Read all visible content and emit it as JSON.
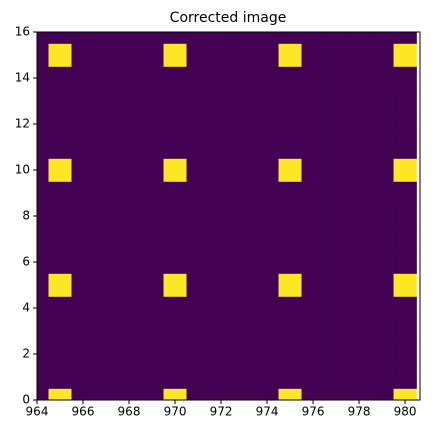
{
  "chart_data": {
    "type": "heatmap",
    "title": "Corrected image",
    "x": [
      964,
      965,
      966,
      967,
      968,
      969,
      970,
      971,
      972,
      973,
      974,
      975,
      976,
      977,
      978,
      979,
      980
    ],
    "y": [
      0,
      1,
      2,
      3,
      4,
      5,
      6,
      7,
      8,
      9,
      10,
      11,
      12,
      13,
      14,
      15,
      16
    ],
    "values": [
      [
        0,
        1,
        0,
        0,
        0,
        0,
        1,
        0,
        0,
        0,
        0,
        1,
        0,
        0,
        0,
        0,
        1
      ],
      [
        0,
        0,
        0,
        0,
        0,
        0,
        0,
        0,
        0,
        0,
        0,
        0,
        0,
        0,
        0,
        0,
        0
      ],
      [
        0,
        0,
        0,
        0,
        0,
        0,
        0,
        0,
        0,
        0,
        0,
        0,
        0,
        0,
        0,
        0,
        0
      ],
      [
        0,
        0,
        0,
        0,
        0,
        0,
        0,
        0,
        0,
        0,
        0,
        0,
        0,
        0,
        0,
        0,
        0
      ],
      [
        0,
        0,
        0,
        0,
        0,
        0,
        0,
        0,
        0,
        0,
        0,
        0,
        0,
        0,
        0,
        0,
        0
      ],
      [
        0,
        1,
        0,
        0,
        0,
        0,
        1,
        0,
        0,
        0,
        0,
        1,
        0,
        0,
        0,
        0,
        1
      ],
      [
        0,
        0,
        0,
        0,
        0,
        0,
        0,
        0,
        0,
        0,
        0,
        0,
        0,
        0,
        0,
        0,
        0
      ],
      [
        0,
        0,
        0,
        0,
        0,
        0,
        0,
        0,
        0,
        0,
        0,
        0,
        0,
        0,
        0,
        0,
        0
      ],
      [
        0,
        0,
        0,
        0,
        0,
        0,
        0,
        0,
        0,
        0,
        0,
        0,
        0,
        0,
        0,
        0,
        0
      ],
      [
        0,
        0,
        0,
        0,
        0,
        0,
        0,
        0,
        0,
        0,
        0,
        0,
        0,
        0,
        0,
        0,
        0
      ],
      [
        0,
        1,
        0,
        0,
        0,
        0,
        1,
        0,
        0,
        0,
        0,
        1,
        0,
        0,
        0,
        0,
        1
      ],
      [
        0,
        0,
        0,
        0,
        0,
        0,
        0,
        0,
        0,
        0,
        0,
        0,
        0,
        0,
        0,
        0,
        0
      ],
      [
        0,
        0,
        0,
        0,
        0,
        0,
        0,
        0,
        0,
        0,
        0,
        0,
        0,
        0,
        0,
        0,
        0
      ],
      [
        0,
        0,
        0,
        0,
        0,
        0,
        0,
        0,
        0,
        0,
        0,
        0,
        0,
        0,
        0,
        0,
        0
      ],
      [
        0,
        0,
        0,
        0,
        0,
        0,
        0,
        0,
        0,
        0,
        0,
        0,
        0,
        0,
        0,
        0,
        0
      ],
      [
        0,
        1,
        0,
        0,
        0,
        0,
        1,
        0,
        0,
        0,
        0,
        1,
        0,
        0,
        0,
        0,
        1
      ],
      [
        0,
        0,
        0,
        0,
        0,
        0,
        0,
        0,
        0,
        0,
        0,
        0,
        0,
        0,
        0,
        0,
        0
      ]
    ],
    "colors": [
      "#440154",
      "#fde725"
    ],
    "xlim": [
      964,
      980.65
    ],
    "ylim": [
      0,
      16
    ],
    "xticks": [
      964,
      966,
      968,
      970,
      972,
      974,
      976,
      978,
      980
    ],
    "yticks": [
      0,
      2,
      4,
      6,
      8,
      10,
      12,
      14,
      16
    ]
  }
}
